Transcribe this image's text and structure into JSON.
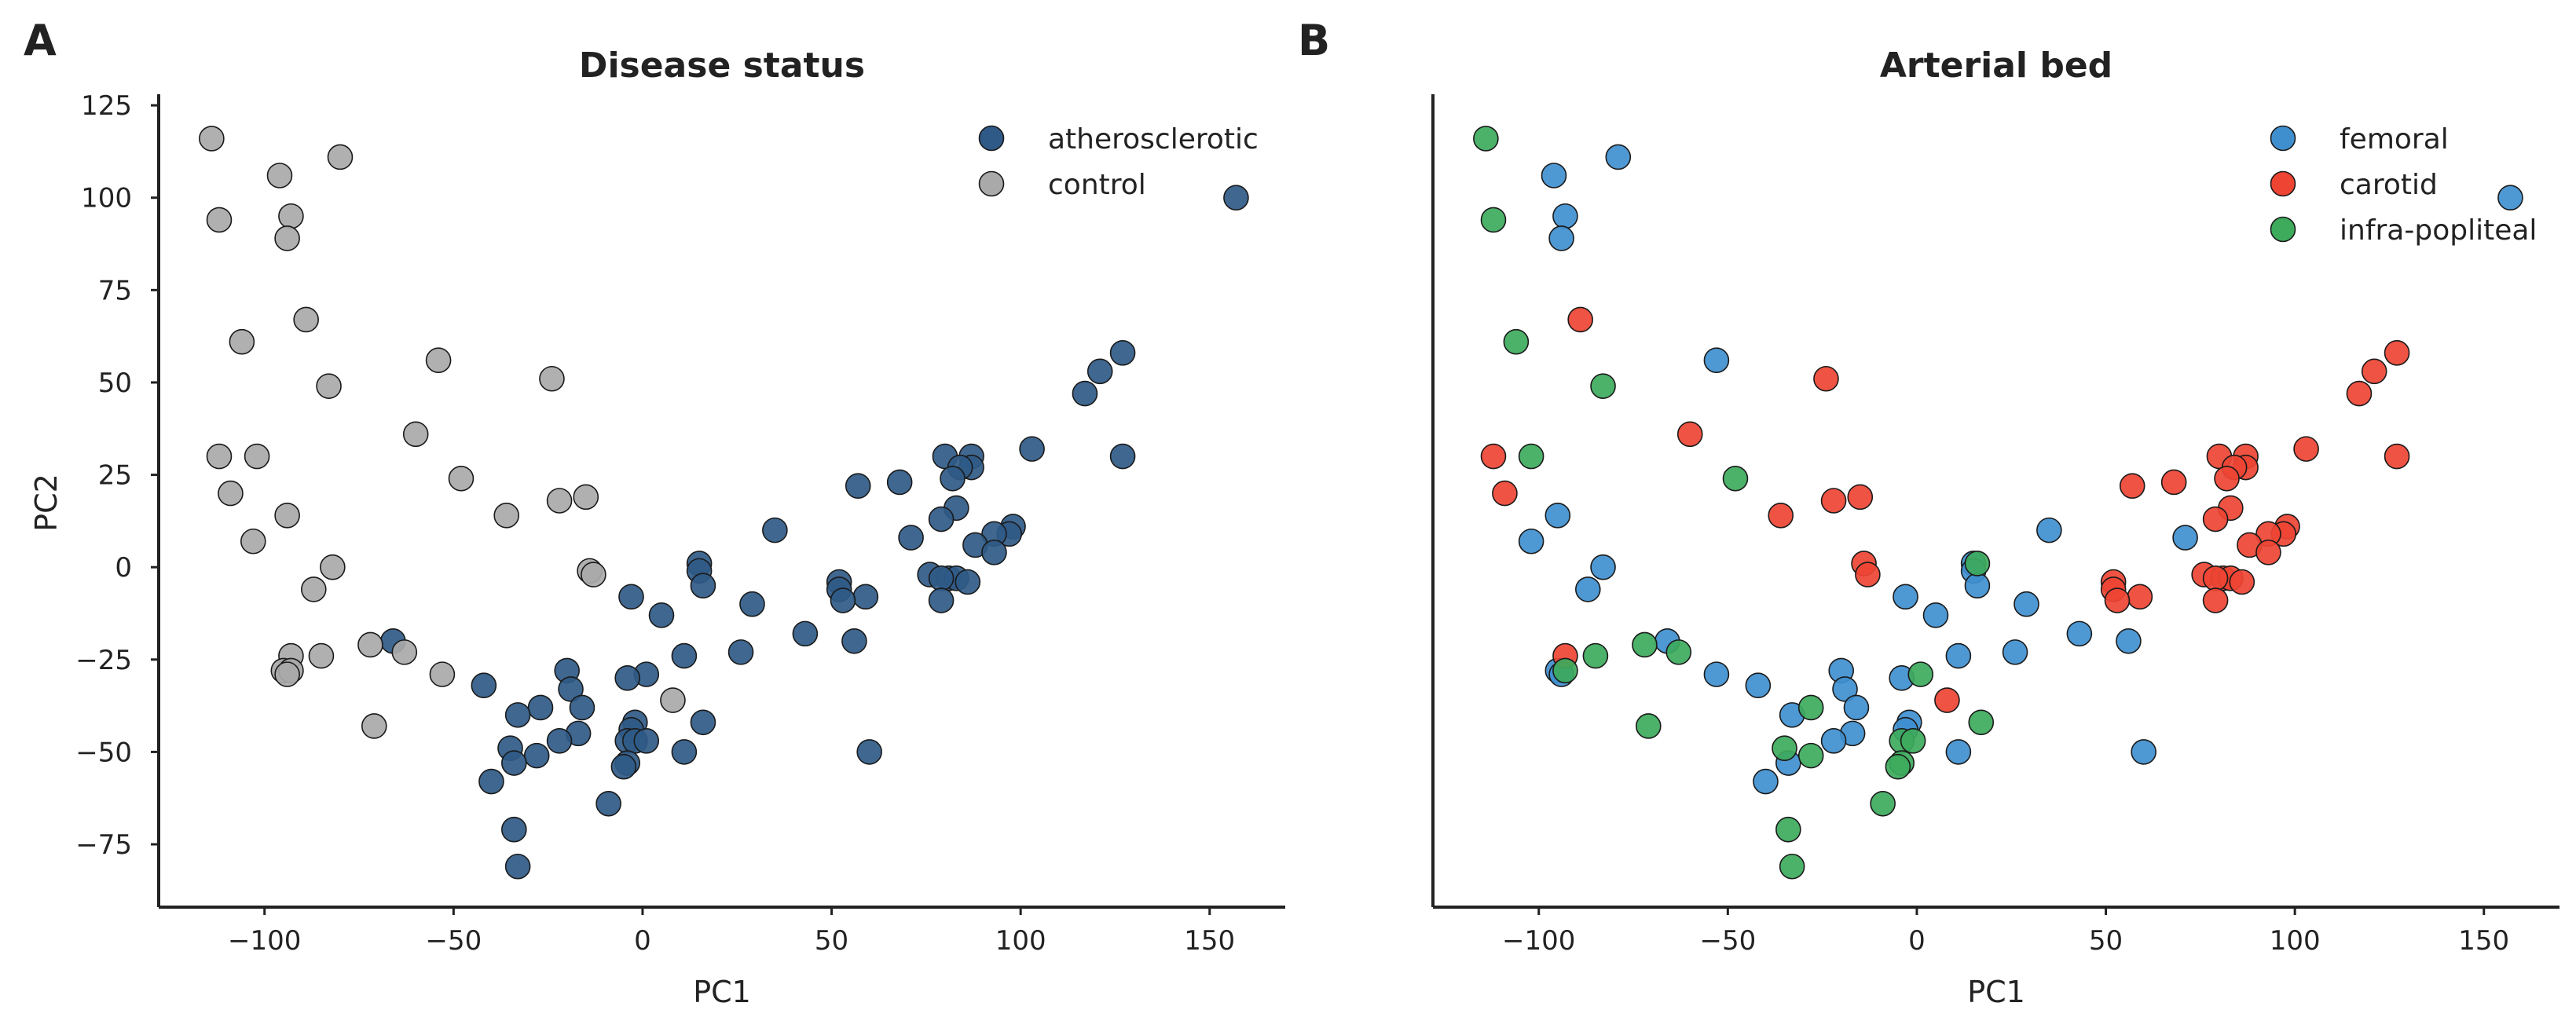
{
  "panel_letters": [
    "A",
    "B"
  ],
  "colors": {
    "atherosclerotic": "#2f5a87",
    "control": "#a9a9a9",
    "femoral": "#3f8fcf",
    "carotid": "#ee4433",
    "infra-popliteal": "#3daa5c"
  },
  "chart_data": [
    {
      "type": "scatter",
      "title": "Disease status",
      "xlabel": "PC1",
      "ylabel": "PC2",
      "xlim": [
        -128,
        170
      ],
      "ylim": [
        -92,
        128
      ],
      "xticks": [
        -100,
        -50,
        0,
        50,
        100,
        150
      ],
      "yticks": [
        125,
        100,
        75,
        50,
        25,
        0,
        -25,
        -50,
        -75
      ],
      "grid": false,
      "legend": "top-right",
      "series": [
        {
          "name": "atherosclerotic",
          "points": [
            [
              157,
              100
            ],
            [
              127,
              58
            ],
            [
              121,
              53
            ],
            [
              117,
              47
            ],
            [
              127,
              30
            ],
            [
              103,
              32
            ],
            [
              80,
              30
            ],
            [
              87,
              30
            ],
            [
              87,
              27
            ],
            [
              84,
              27
            ],
            [
              82,
              24
            ],
            [
              68,
              23
            ],
            [
              57,
              22
            ],
            [
              83,
              16
            ],
            [
              79,
              13
            ],
            [
              98,
              11
            ],
            [
              35,
              10
            ],
            [
              97,
              9
            ],
            [
              93,
              9
            ],
            [
              71,
              8
            ],
            [
              88,
              6
            ],
            [
              93,
              4
            ],
            [
              15,
              1
            ],
            [
              15,
              -1
            ],
            [
              76,
              -2
            ],
            [
              81,
              -3
            ],
            [
              83,
              -3
            ],
            [
              86,
              -4
            ],
            [
              79,
              -3
            ],
            [
              16,
              -5
            ],
            [
              52,
              -4
            ],
            [
              52,
              -6
            ],
            [
              59,
              -8
            ],
            [
              53,
              -9
            ],
            [
              79,
              -9
            ],
            [
              -3,
              -8
            ],
            [
              29,
              -10
            ],
            [
              5,
              -13
            ],
            [
              43,
              -18
            ],
            [
              -66,
              -20
            ],
            [
              56,
              -20
            ],
            [
              11,
              -24
            ],
            [
              26,
              -23
            ],
            [
              -20,
              -28
            ],
            [
              1,
              -29
            ],
            [
              -4,
              -30
            ],
            [
              -42,
              -32
            ],
            [
              -19,
              -33
            ],
            [
              -16,
              -38
            ],
            [
              -27,
              -38
            ],
            [
              -33,
              -40
            ],
            [
              -2,
              -42
            ],
            [
              -3,
              -44
            ],
            [
              16,
              -42
            ],
            [
              -4,
              -47
            ],
            [
              -2,
              -47
            ],
            [
              -17,
              -45
            ],
            [
              -22,
              -47
            ],
            [
              1,
              -47
            ],
            [
              -35,
              -49
            ],
            [
              -28,
              -51
            ],
            [
              -34,
              -53
            ],
            [
              -4,
              -53
            ],
            [
              -5,
              -54
            ],
            [
              11,
              -50
            ],
            [
              60,
              -50
            ],
            [
              -40,
              -58
            ],
            [
              -9,
              -64
            ],
            [
              -34,
              -71
            ],
            [
              -33,
              -81
            ]
          ]
        },
        {
          "name": "control",
          "points": [
            [
              -114,
              116
            ],
            [
              -96,
              106
            ],
            [
              -80,
              111
            ],
            [
              -112,
              94
            ],
            [
              -93,
              95
            ],
            [
              -94,
              89
            ],
            [
              -89,
              67
            ],
            [
              -106,
              61
            ],
            [
              -83,
              49
            ],
            [
              -54,
              56
            ],
            [
              -24,
              51
            ],
            [
              -60,
              36
            ],
            [
              -112,
              30
            ],
            [
              -102,
              30
            ],
            [
              -48,
              24
            ],
            [
              -109,
              20
            ],
            [
              -22,
              18
            ],
            [
              -15,
              19
            ],
            [
              -103,
              7
            ],
            [
              -94,
              14
            ],
            [
              -36,
              14
            ],
            [
              -82,
              0
            ],
            [
              -14,
              -1
            ],
            [
              -13,
              -2
            ],
            [
              -87,
              -6
            ],
            [
              -72,
              -21
            ],
            [
              -63,
              -23
            ],
            [
              -93,
              -24
            ],
            [
              -85,
              -24
            ],
            [
              -95,
              -28
            ],
            [
              -93,
              -28
            ],
            [
              -94,
              -29
            ],
            [
              -53,
              -29
            ],
            [
              8,
              -36
            ],
            [
              -71,
              -43
            ]
          ]
        }
      ]
    },
    {
      "type": "scatter",
      "title": "Arterial bed",
      "xlabel": "PC1",
      "ylabel": "",
      "xlim": [
        -128,
        170
      ],
      "ylim": [
        -92,
        128
      ],
      "xticks": [
        -100,
        -50,
        0,
        50,
        100,
        150
      ],
      "yticks": [],
      "grid": false,
      "legend": "top-right",
      "series": [
        {
          "name": "femoral",
          "points": [
            [
              157,
              100
            ],
            [
              -79,
              111
            ],
            [
              -96,
              106
            ],
            [
              -93,
              95
            ],
            [
              -94,
              89
            ],
            [
              -53,
              56
            ],
            [
              -95,
              14
            ],
            [
              -102,
              7
            ],
            [
              35,
              10
            ],
            [
              71,
              8
            ],
            [
              15,
              1
            ],
            [
              15,
              -1
            ],
            [
              -83,
              0
            ],
            [
              -87,
              -6
            ],
            [
              16,
              -5
            ],
            [
              -3,
              -8
            ],
            [
              29,
              -10
            ],
            [
              5,
              -13
            ],
            [
              43,
              -18
            ],
            [
              -66,
              -20
            ],
            [
              56,
              -20
            ],
            [
              11,
              -24
            ],
            [
              26,
              -23
            ],
            [
              -20,
              -28
            ],
            [
              -53,
              -29
            ],
            [
              -4,
              -30
            ],
            [
              -42,
              -32
            ],
            [
              -19,
              -33
            ],
            [
              -16,
              -38
            ],
            [
              -33,
              -40
            ],
            [
              -2,
              -42
            ],
            [
              -3,
              -44
            ],
            [
              -17,
              -45
            ],
            [
              -22,
              -47
            ],
            [
              11,
              -50
            ],
            [
              60,
              -50
            ],
            [
              -34,
              -53
            ],
            [
              -40,
              -58
            ],
            [
              -95,
              -28
            ],
            [
              -94,
              -29
            ]
          ]
        },
        {
          "name": "carotid",
          "points": [
            [
              127,
              58
            ],
            [
              121,
              53
            ],
            [
              117,
              47
            ],
            [
              127,
              30
            ],
            [
              103,
              32
            ],
            [
              80,
              30
            ],
            [
              87,
              30
            ],
            [
              87,
              27
            ],
            [
              84,
              27
            ],
            [
              82,
              24
            ],
            [
              68,
              23
            ],
            [
              57,
              22
            ],
            [
              83,
              16
            ],
            [
              79,
              13
            ],
            [
              98,
              11
            ],
            [
              97,
              9
            ],
            [
              93,
              9
            ],
            [
              88,
              6
            ],
            [
              93,
              4
            ],
            [
              76,
              -2
            ],
            [
              81,
              -3
            ],
            [
              83,
              -3
            ],
            [
              86,
              -4
            ],
            [
              79,
              -3
            ],
            [
              52,
              -4
            ],
            [
              52,
              -6
            ],
            [
              59,
              -8
            ],
            [
              53,
              -9
            ],
            [
              79,
              -9
            ],
            [
              -89,
              67
            ],
            [
              -24,
              51
            ],
            [
              -60,
              36
            ],
            [
              -112,
              30
            ],
            [
              -109,
              20
            ],
            [
              -22,
              18
            ],
            [
              -15,
              19
            ],
            [
              -36,
              14
            ],
            [
              -14,
              1
            ],
            [
              -13,
              -2
            ],
            [
              -93,
              -24
            ],
            [
              8,
              -36
            ]
          ]
        },
        {
          "name": "infra-popliteal",
          "points": [
            [
              -114,
              116
            ],
            [
              -112,
              94
            ],
            [
              -106,
              61
            ],
            [
              -83,
              49
            ],
            [
              -102,
              30
            ],
            [
              -48,
              24
            ],
            [
              16,
              1
            ],
            [
              -72,
              -21
            ],
            [
              -63,
              -23
            ],
            [
              -85,
              -24
            ],
            [
              -93,
              -28
            ],
            [
              -28,
              -38
            ],
            [
              1,
              -29
            ],
            [
              17,
              -42
            ],
            [
              -71,
              -43
            ],
            [
              -4,
              -47
            ],
            [
              -1,
              -47
            ],
            [
              -35,
              -49
            ],
            [
              -28,
              -51
            ],
            [
              -4,
              -53
            ],
            [
              -5,
              -54
            ],
            [
              -9,
              -64
            ],
            [
              -34,
              -71
            ],
            [
              -33,
              -81
            ]
          ]
        }
      ]
    }
  ]
}
